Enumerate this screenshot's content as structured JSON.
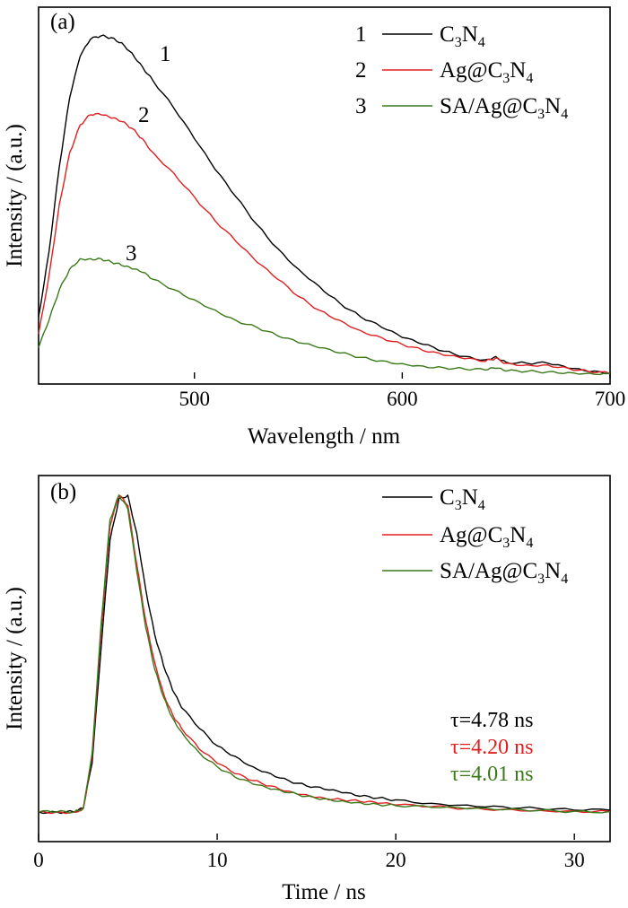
{
  "chart_data": [
    {
      "panel_label": "(a)",
      "type": "line",
      "xlabel": "Wavelength / nm",
      "ylabel": "Intensity / (a.u.)",
      "xlim": [
        425,
        700
      ],
      "ylim": [
        0,
        1.0
      ],
      "x_ticks": [
        500,
        600,
        700
      ],
      "legend_position": "top-right",
      "series": [
        {
          "name": "C3N4",
          "legend_number": "1",
          "curve_label": "1",
          "color": "#000000",
          "x": [
            425,
            430,
            435,
            440,
            445,
            450,
            455,
            460,
            465,
            470,
            475,
            480,
            490,
            500,
            510,
            520,
            530,
            540,
            550,
            560,
            570,
            580,
            590,
            600,
            610,
            620,
            630,
            640,
            645,
            650,
            660,
            670,
            680,
            690,
            700
          ],
          "y": [
            0.18,
            0.37,
            0.62,
            0.82,
            0.94,
            0.99,
            1.0,
            0.995,
            0.98,
            0.95,
            0.91,
            0.87,
            0.79,
            0.7,
            0.61,
            0.53,
            0.45,
            0.38,
            0.32,
            0.27,
            0.22,
            0.18,
            0.15,
            0.12,
            0.1,
            0.08,
            0.065,
            0.055,
            0.065,
            0.048,
            0.045,
            0.045,
            0.03,
            0.02,
            0.015
          ]
        },
        {
          "name": "Ag@C3N4",
          "legend_number": "2",
          "curve_label": "2",
          "color": "#e02020",
          "x": [
            425,
            430,
            435,
            440,
            445,
            450,
            455,
            460,
            465,
            470,
            475,
            480,
            490,
            500,
            510,
            520,
            530,
            540,
            550,
            560,
            570,
            580,
            590,
            600,
            610,
            620,
            630,
            640,
            645,
            650,
            660,
            670,
            680,
            690,
            700
          ],
          "y": [
            0.13,
            0.3,
            0.51,
            0.66,
            0.74,
            0.77,
            0.77,
            0.76,
            0.75,
            0.73,
            0.7,
            0.66,
            0.6,
            0.53,
            0.46,
            0.4,
            0.34,
            0.29,
            0.24,
            0.2,
            0.17,
            0.14,
            0.12,
            0.1,
            0.082,
            0.068,
            0.058,
            0.05,
            0.06,
            0.045,
            0.04,
            0.04,
            0.03,
            0.02,
            0.015
          ]
        },
        {
          "name": "SA/Ag@C3N4",
          "legend_number": "3",
          "curve_label": "3",
          "color": "#3a7a1a",
          "x": [
            425,
            430,
            435,
            440,
            445,
            450,
            455,
            460,
            465,
            470,
            475,
            480,
            490,
            500,
            510,
            520,
            530,
            540,
            550,
            560,
            570,
            580,
            590,
            600,
            610,
            620,
            630,
            640,
            645,
            650,
            660,
            670,
            680,
            690,
            700
          ],
          "y": [
            0.09,
            0.17,
            0.26,
            0.32,
            0.35,
            0.35,
            0.35,
            0.34,
            0.33,
            0.32,
            0.31,
            0.29,
            0.26,
            0.23,
            0.2,
            0.17,
            0.15,
            0.125,
            0.105,
            0.09,
            0.075,
            0.062,
            0.052,
            0.044,
            0.037,
            0.032,
            0.028,
            0.025,
            0.03,
            0.022,
            0.021,
            0.02,
            0.018,
            0.016,
            0.015
          ]
        }
      ]
    },
    {
      "panel_label": "(b)",
      "type": "line",
      "xlabel": "Time / ns",
      "ylabel": "Intensity / (a.u.)",
      "xlim": [
        0,
        32
      ],
      "ylim": [
        0,
        1.0
      ],
      "x_ticks": [
        0,
        10,
        20,
        30
      ],
      "legend_position": "top-right",
      "series": [
        {
          "name": "C3N4",
          "color": "#000000",
          "tau": "τ=4.78 ns",
          "x": [
            0,
            1,
            2,
            2.5,
            3,
            3.5,
            4,
            4.5,
            5,
            5.5,
            6,
            6.5,
            7,
            7.5,
            8,
            9,
            10,
            11,
            12,
            13,
            14,
            15,
            16,
            17,
            18,
            19,
            20,
            22,
            24,
            26,
            28,
            30,
            32
          ],
          "y": [
            0.08,
            0.08,
            0.08,
            0.09,
            0.22,
            0.55,
            0.86,
            0.98,
            0.99,
            0.88,
            0.72,
            0.59,
            0.5,
            0.43,
            0.38,
            0.32,
            0.27,
            0.24,
            0.21,
            0.19,
            0.17,
            0.155,
            0.145,
            0.135,
            0.125,
            0.12,
            0.115,
            0.105,
            0.1,
            0.095,
            0.09,
            0.085,
            0.085
          ]
        },
        {
          "name": "Ag@C3N4",
          "color": "#e02020",
          "tau": "τ=4.20 ns",
          "x": [
            0,
            1,
            2,
            2.5,
            3,
            3.5,
            4,
            4.5,
            5,
            5.5,
            6,
            6.5,
            7,
            7.5,
            8,
            9,
            10,
            11,
            12,
            13,
            14,
            15,
            16,
            17,
            18,
            19,
            20,
            22,
            24,
            26,
            28,
            30,
            32
          ],
          "y": [
            0.08,
            0.08,
            0.08,
            0.09,
            0.24,
            0.6,
            0.9,
            0.99,
            0.96,
            0.79,
            0.63,
            0.51,
            0.42,
            0.36,
            0.32,
            0.26,
            0.22,
            0.19,
            0.17,
            0.155,
            0.14,
            0.13,
            0.12,
            0.115,
            0.11,
            0.105,
            0.1,
            0.095,
            0.09,
            0.088,
            0.085,
            0.083,
            0.082
          ]
        },
        {
          "name": "SA/Ag@C3N4",
          "color": "#3a7a1a",
          "tau": "τ=4.01 ns",
          "x": [
            0,
            1,
            2,
            2.5,
            3,
            3.5,
            4,
            4.5,
            5,
            5.5,
            6,
            6.5,
            7,
            7.5,
            8,
            9,
            10,
            11,
            12,
            13,
            14,
            15,
            16,
            17,
            18,
            19,
            20,
            22,
            24,
            26,
            28,
            30,
            32
          ],
          "y": [
            0.08,
            0.08,
            0.08,
            0.09,
            0.25,
            0.62,
            0.92,
            0.99,
            0.95,
            0.77,
            0.61,
            0.49,
            0.41,
            0.35,
            0.31,
            0.25,
            0.21,
            0.18,
            0.16,
            0.145,
            0.135,
            0.125,
            0.118,
            0.112,
            0.107,
            0.102,
            0.098,
            0.093,
            0.089,
            0.086,
            0.084,
            0.082,
            0.081
          ]
        }
      ]
    }
  ]
}
